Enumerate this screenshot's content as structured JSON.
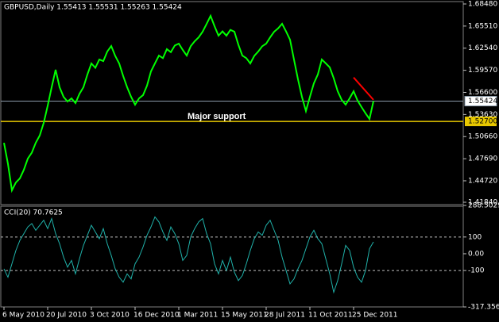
{
  "chart_data": [
    {
      "type": "line",
      "title": "GBPUSD,Daily 1.55413 1.55531 1.55263 1.55424",
      "color": "#00ff00",
      "values": [
        1.4983,
        1.47,
        1.4344,
        1.445,
        1.4504,
        1.462,
        1.477,
        1.485,
        1.4983,
        1.508,
        1.525,
        1.548,
        1.5729,
        1.5964,
        1.5729,
        1.56,
        1.5537,
        1.558,
        1.5516,
        1.564,
        1.5729,
        1.59,
        1.6049,
        1.599,
        1.6102,
        1.608,
        1.6209,
        1.6283,
        1.615,
        1.6049,
        1.588,
        1.5729,
        1.56,
        1.5495,
        1.558,
        1.5623,
        1.575,
        1.5942,
        1.605,
        1.6155,
        1.612,
        1.6241,
        1.62,
        1.629,
        1.6315,
        1.623,
        1.6155,
        1.628,
        1.6347,
        1.64,
        1.6475,
        1.658,
        1.6688,
        1.655,
        1.6422,
        1.648,
        1.6422,
        1.65,
        1.6475,
        1.63,
        1.6155,
        1.612,
        1.6049,
        1.615,
        1.6209,
        1.628,
        1.6315,
        1.64,
        1.6475,
        1.652,
        1.6582,
        1.648,
        1.6368,
        1.61,
        1.5836,
        1.56,
        1.5409,
        1.56,
        1.5782,
        1.59,
        1.6102,
        1.605,
        1.5996,
        1.585,
        1.5676,
        1.556,
        1.5495,
        1.558,
        1.5676,
        1.555,
        1.5463,
        1.538,
        1.5303,
        1.55424
      ],
      "ylim": [
        1.4184,
        1.6848
      ],
      "yticks": [
        {
          "value": 1.6848,
          "label": "1.68480"
        },
        {
          "value": 1.6551,
          "label": "1.65510"
        },
        {
          "value": 1.6254,
          "label": "1.62540"
        },
        {
          "value": 1.5957,
          "label": "1.59570"
        },
        {
          "value": 1.566,
          "label": "1.56600"
        },
        {
          "value": 1.5363,
          "label": "1.53630"
        },
        {
          "value": 1.5066,
          "label": "1.50660"
        },
        {
          "value": 1.4769,
          "label": "1.47690"
        },
        {
          "value": 1.4472,
          "label": "1.44720"
        },
        {
          "value": 1.4184,
          "label": "1.41840"
        }
      ],
      "current_price": {
        "value": 1.55424,
        "color": "#8a9aa8"
      },
      "support_line": {
        "value": 1.527,
        "label": "1.52700",
        "color": "#e8c800",
        "annotation": "Major support"
      },
      "trendline": {
        "color": "#ff0000",
        "x": [
          88,
          93
        ],
        "y": [
          1.586,
          1.556
        ]
      }
    },
    {
      "type": "line",
      "title": "CCI(20) 70.7625",
      "color": "#20b2aa",
      "categories": [
        "6 May 2010",
        null,
        null,
        null,
        null,
        null,
        null,
        null,
        null,
        null,
        null,
        "20 Jul 2010",
        null,
        null,
        null,
        null,
        null,
        null,
        null,
        null,
        null,
        null,
        "3 Oct 2010",
        null,
        null,
        null,
        null,
        null,
        null,
        null,
        null,
        null,
        null,
        "16 Dec 2010",
        null,
        null,
        null,
        null,
        null,
        null,
        null,
        null,
        null,
        null,
        "1 Mar 2011",
        null,
        null,
        null,
        null,
        null,
        null,
        null,
        null,
        null,
        null,
        "15 May 2011",
        null,
        null,
        null,
        null,
        null,
        null,
        null,
        null,
        null,
        null,
        "28 Jul 2011",
        null,
        null,
        null,
        null,
        null,
        null,
        null,
        null,
        null,
        null,
        "11 Oct 2011",
        null,
        null,
        null,
        null,
        null,
        null,
        null,
        null,
        null,
        null,
        "25 Dec 2011",
        null,
        null,
        null,
        null,
        null
      ],
      "values": [
        -90,
        -140,
        -60,
        20,
        80,
        120,
        160,
        180,
        140,
        170,
        200,
        150,
        210,
        120,
        60,
        -20,
        -80,
        -40,
        -120,
        -30,
        50,
        110,
        170,
        130,
        90,
        150,
        60,
        -10,
        -90,
        -140,
        -170,
        -120,
        -150,
        -60,
        -20,
        40,
        110,
        160,
        220,
        190,
        130,
        80,
        160,
        120,
        60,
        -40,
        -10,
        100,
        150,
        190,
        210,
        120,
        60,
        -60,
        -120,
        -40,
        -100,
        -20,
        -110,
        -160,
        -130,
        -60,
        20,
        90,
        130,
        110,
        170,
        200,
        140,
        80,
        -20,
        -100,
        -180,
        -150,
        -90,
        -40,
        30,
        100,
        140,
        90,
        60,
        -30,
        -120,
        -230,
        -160,
        -60,
        50,
        20,
        -80,
        -140,
        -170,
        -100,
        30,
        70.7625
      ],
      "ylim": [
        -317.356,
        288.5029
      ],
      "yticks": [
        288.5029,
        100,
        {
          "value": 0,
          "label": "0.00"
        },
        -100,
        -317.356
      ],
      "levels": [
        100,
        -100
      ]
    }
  ]
}
